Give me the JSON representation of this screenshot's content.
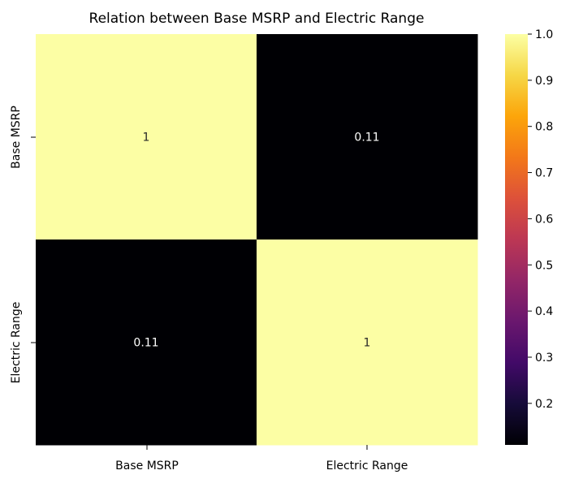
{
  "chart_data": {
    "type": "heatmap",
    "title": "Relation between Base MSRP and Electric Range",
    "xlabel": "",
    "ylabel": "",
    "x_categories": [
      "Base MSRP",
      "Electric Range"
    ],
    "y_categories": [
      "Base MSRP",
      "Electric Range"
    ],
    "values": [
      [
        1,
        0.11
      ],
      [
        0.11,
        1
      ]
    ],
    "annotations": [
      [
        "1",
        "0.11"
      ],
      [
        "0.11",
        "1"
      ]
    ],
    "colormap": "inferno",
    "colorbar": {
      "min": 0.11,
      "max": 1.0,
      "ticks": [
        1.0,
        0.9,
        0.8,
        0.7,
        0.6,
        0.5,
        0.4,
        0.3,
        0.2
      ],
      "tick_labels": [
        "1.0",
        "0.9",
        "0.8",
        "0.7",
        "0.6",
        "0.5",
        "0.4",
        "0.3",
        "0.2"
      ]
    },
    "colors": {
      "high": "#fcfea4",
      "low": "#000004",
      "annotation_on_light": "#262626",
      "annotation_on_dark": "#ffffff"
    }
  }
}
